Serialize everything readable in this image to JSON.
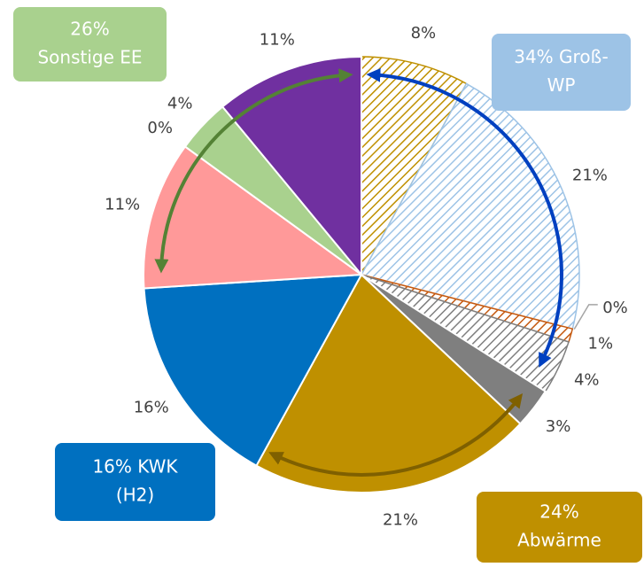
{
  "chart_data": {
    "type": "pie",
    "values": [
      8,
      21,
      0,
      1,
      4,
      3,
      21,
      16,
      11,
      0,
      4,
      11
    ],
    "value_labels": [
      "8%",
      "21%",
      "0%",
      "1%",
      "4%",
      "3%",
      "21%",
      "16%",
      "11%",
      "0%",
      "4%",
      "11%"
    ],
    "colors": [
      "#BF9000",
      "#9DC3E6",
      "#A5A5A5",
      "#C55A11",
      "#7F7F7F",
      "#7F7F7F",
      "#BF9000",
      "#0070C0",
      "#FF9999",
      "#A9D18E",
      "#A9D18E",
      "#7030A0"
    ],
    "hatch": [
      true,
      true,
      false,
      true,
      true,
      false,
      false,
      false,
      false,
      false,
      false,
      false
    ],
    "annotations": [
      {
        "lines": [
          "26%",
          "Sonstige EE"
        ],
        "color": "#A9D18E"
      },
      {
        "lines": [
          "34% Groß-",
          "WP"
        ],
        "color": "#9DC3E6"
      },
      {
        "lines": [
          "24%",
          "Abwärme"
        ],
        "color": "#BF9000"
      },
      {
        "lines": [
          "16% KWK",
          "(H2)"
        ],
        "color": "#0070C0"
      }
    ]
  }
}
